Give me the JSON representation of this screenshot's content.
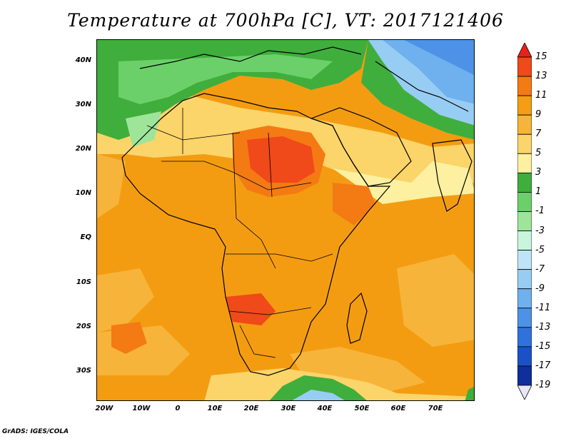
{
  "title": "Temperature at 700hPa [C], VT: 2017121406",
  "footer": "GrADS: IGES/COLA",
  "lat_labels": [
    "40N",
    "30N",
    "20N",
    "10N",
    "EQ",
    "10S",
    "20S",
    "30S"
  ],
  "lon_labels": [
    "20W",
    "10W",
    "0",
    "10E",
    "20E",
    "30E",
    "40E",
    "50E",
    "60E",
    "70E"
  ],
  "colorbar": {
    "labels": [
      "15",
      "13",
      "11",
      "9",
      "7",
      "5",
      "3",
      "1",
      "-1",
      "-3",
      "-5",
      "-7",
      "-9",
      "-11",
      "-13",
      "-15",
      "-17",
      "-19"
    ],
    "colors": [
      "#e8221a",
      "#f0491a",
      "#f47a14",
      "#f59d14",
      "#f7b43a",
      "#fbd46a",
      "#fdf0a0",
      "#3fae3c",
      "#6cd06a",
      "#9ee59a",
      "#c9f5dc",
      "#bfe4f7",
      "#98cdf3",
      "#6fb1ee",
      "#4d92e6",
      "#2f72dc",
      "#1a52c6",
      "#0f2f9a",
      "#0a1b6e"
    ]
  },
  "map": {
    "region": "Africa",
    "lon_range": [
      -23,
      80
    ],
    "lat_range": [
      -36,
      45
    ],
    "dominant_color": "#f39c12"
  }
}
